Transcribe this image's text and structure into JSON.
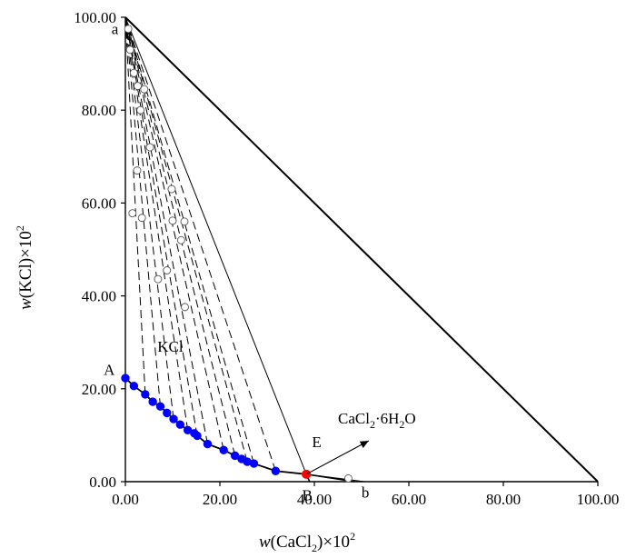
{
  "chart_data": {
    "type": "scatter",
    "title": "",
    "xlabel": {
      "italic": "w",
      "base": "(CaCl",
      "sub": "2",
      "post": ")×10",
      "sup": "2"
    },
    "ylabel": {
      "italic": "w",
      "base": "(KCl)×10",
      "sup": "2"
    },
    "xlim": [
      0,
      100
    ],
    "ylim": [
      0,
      100
    ],
    "x_ticks": [
      {
        "value": 0,
        "label": "0.00"
      },
      {
        "value": 20,
        "label": "20.00"
      },
      {
        "value": 40,
        "label": "40.00"
      },
      {
        "value": 60,
        "label": "60.00"
      },
      {
        "value": 80,
        "label": "80.00"
      },
      {
        "value": 100,
        "label": "100.00"
      }
    ],
    "y_ticks": [
      {
        "value": 0,
        "label": "0.00"
      },
      {
        "value": 20,
        "label": "20.00"
      },
      {
        "value": 40,
        "label": "40.00"
      },
      {
        "value": 60,
        "label": "60.00"
      },
      {
        "value": 80,
        "label": "80.00"
      },
      {
        "value": 100,
        "label": "100.00"
      }
    ],
    "grid": false,
    "triangle": [
      [
        0,
        100
      ],
      [
        0,
        0
      ],
      [
        100,
        0
      ]
    ],
    "solubility_curve": {
      "color": "#0000ff",
      "points": [
        [
          0,
          22.3
        ],
        [
          1.8,
          20.6
        ],
        [
          4.2,
          18.8
        ],
        [
          5.8,
          17.2
        ],
        [
          7.4,
          16.2
        ],
        [
          8.8,
          14.8
        ],
        [
          10.2,
          13.5
        ],
        [
          11.6,
          12.3
        ],
        [
          13.2,
          11.1
        ],
        [
          14.6,
          10.4
        ],
        [
          15.2,
          9.9
        ],
        [
          17.4,
          8.1
        ],
        [
          20.8,
          6.8
        ],
        [
          23.2,
          5.6
        ],
        [
          24.6,
          4.9
        ],
        [
          25.8,
          4.3
        ],
        [
          27.2,
          3.9
        ],
        [
          31.8,
          2.3
        ]
      ]
    },
    "invariant_point": {
      "label": "E",
      "x": 38.3,
      "y": 1.6,
      "color": "#ff0000"
    },
    "curve_EB": [
      [
        38.3,
        1.6
      ],
      [
        39.0,
        0
      ]
    ],
    "curve_Eb": [
      [
        38.3,
        1.6
      ],
      [
        48.5,
        0
      ]
    ],
    "tie_lines_solid": [
      {
        "from": [
          38.3,
          1.6
        ],
        "to": [
          0,
          100
        ]
      },
      {
        "from": [
          38.3,
          1.6
        ],
        "to": [
          50.6,
          0
        ]
      }
    ],
    "tie_lines_dashed": [
      {
        "from": [
          0,
          22.3
        ],
        "to": [
          0,
          100
        ]
      },
      {
        "from": [
          4.2,
          18.8
        ],
        "to": [
          0,
          100
        ]
      },
      {
        "from": [
          7.4,
          16.2
        ],
        "to": [
          0,
          100
        ]
      },
      {
        "from": [
          10.2,
          13.5
        ],
        "to": [
          0,
          100
        ]
      },
      {
        "from": [
          13.2,
          11.1
        ],
        "to": [
          0,
          100
        ]
      },
      {
        "from": [
          15.2,
          9.9
        ],
        "to": [
          0,
          100
        ]
      },
      {
        "from": [
          17.4,
          8.1
        ],
        "to": [
          0,
          100
        ]
      },
      {
        "from": [
          20.8,
          6.8
        ],
        "to": [
          0,
          100
        ]
      },
      {
        "from": [
          23.2,
          5.6
        ],
        "to": [
          0,
          100
        ]
      },
      {
        "from": [
          25.8,
          4.3
        ],
        "to": [
          0,
          100
        ]
      },
      {
        "from": [
          27.2,
          3.9
        ],
        "to": [
          0,
          100
        ]
      },
      {
        "from": [
          31.8,
          2.3
        ],
        "to": [
          0,
          100
        ]
      }
    ],
    "wet_residues": [
      [
        0.6,
        97.5
      ],
      [
        1.0,
        93.0
      ],
      [
        1.8,
        88.0
      ],
      [
        2.6,
        85.2
      ],
      [
        4.0,
        84.5
      ],
      [
        3.2,
        80.0
      ],
      [
        5.2,
        72.0
      ],
      [
        2.5,
        67.0
      ],
      [
        9.8,
        63.0
      ],
      [
        1.5,
        57.8
      ],
      [
        3.5,
        56.8
      ],
      [
        10.0,
        56.2
      ],
      [
        12.5,
        56.0
      ],
      [
        11.8,
        52.0
      ],
      [
        8.8,
        45.5
      ],
      [
        6.9,
        43.6
      ],
      [
        12.6,
        37.6
      ],
      [
        47.2,
        0.7
      ]
    ],
    "arrow": {
      "from": [
        38.3,
        1.6
      ],
      "to": [
        51.5,
        8.8
      ]
    },
    "labels": [
      {
        "text": "a",
        "x": -2.2,
        "y": 96.4
      },
      {
        "text": "A",
        "x": -3.4,
        "y": 23.0
      },
      {
        "text": "KCl",
        "x": 9.5,
        "y": 28.0
      },
      {
        "text": "E",
        "x": 40.5,
        "y": 7.4
      },
      {
        "text": "B",
        "x": 38.5,
        "y": -4.0
      },
      {
        "text": "b",
        "x": 50.8,
        "y": -3.4
      }
    ],
    "arrow_label": {
      "base": "CaCl",
      "sub1": "2",
      "mid": "·6H",
      "sub2": "2",
      "post": "O",
      "x": 45.0,
      "y": 12.5
    }
  }
}
